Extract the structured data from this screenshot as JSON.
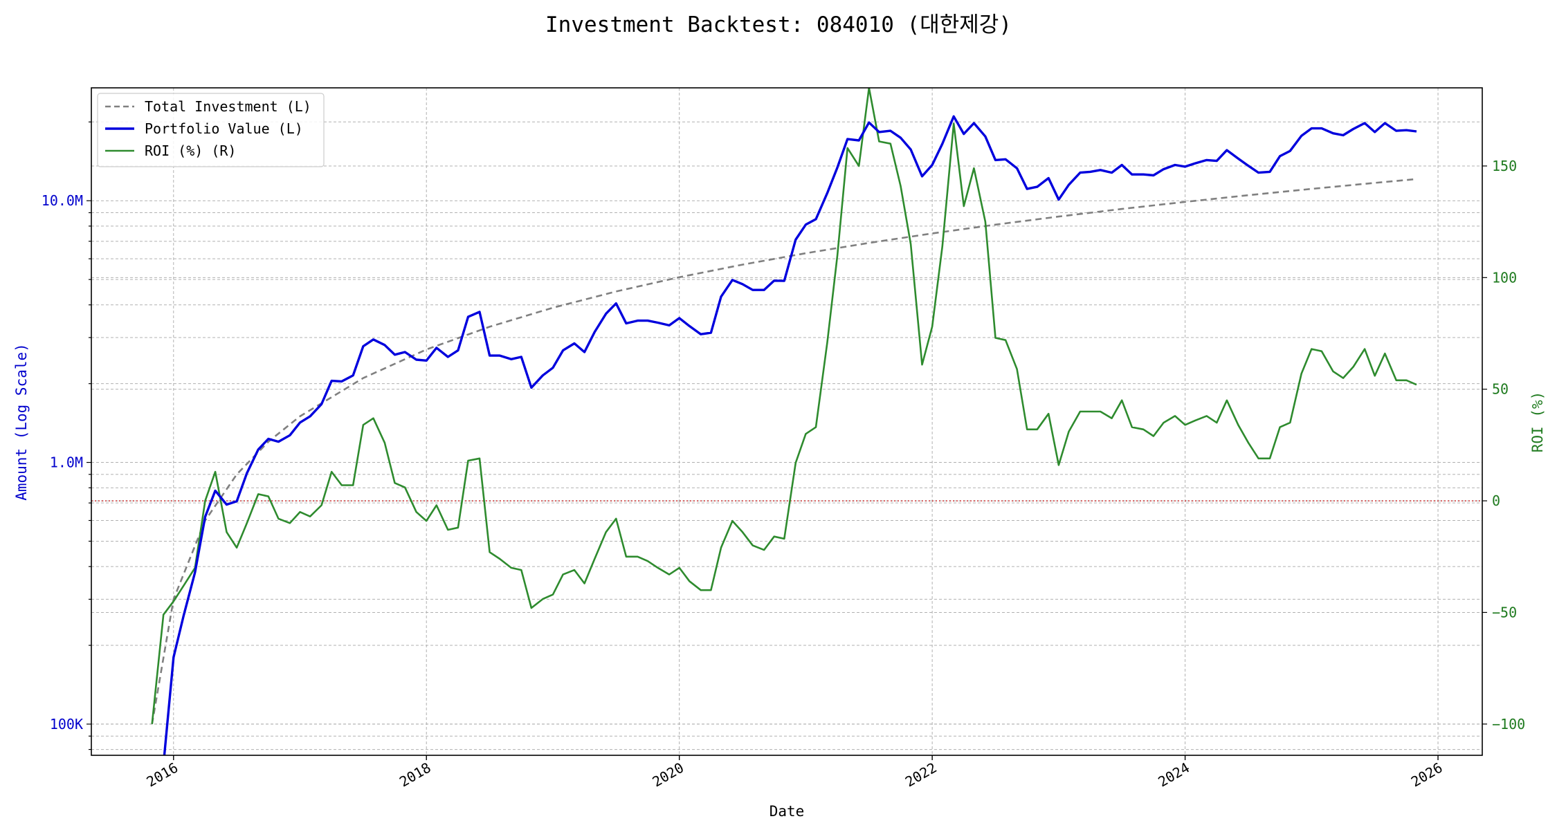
{
  "chart_data": {
    "type": "line",
    "title": "Investment Backtest: 084010 (대한제강)",
    "xlabel": "Date",
    "ylabel_left": "Amount (Log Scale)",
    "ylabel_right": "ROI (%)",
    "x_ticks": [
      2016,
      2018,
      2020,
      2022,
      2024,
      2026
    ],
    "x_tick_labels": [
      "2016",
      "2018",
      "2020",
      "2022",
      "2024",
      "2026"
    ],
    "xlim": [
      2015.35,
      2026.35
    ],
    "y_left_scale": "log",
    "y_left_lim": [
      76000,
      27000000
    ],
    "y_left_ticks": [
      100000,
      1000000,
      10000000
    ],
    "y_left_tick_labels": [
      "100K",
      "1.0M",
      "10.0M"
    ],
    "y_right_lim": [
      -114,
      185
    ],
    "y_right_ticks": [
      -100,
      -50,
      0,
      50,
      100,
      150
    ],
    "y_right_tick_labels": [
      "−100",
      "−50",
      "0",
      "50",
      "100",
      "150"
    ],
    "zero_reference_line_roi": 0,
    "grid": true,
    "legend_position": "top-left",
    "colors": {
      "total_investment": "#808080",
      "portfolio_value": "#0000dd",
      "roi": "#2e8b2e",
      "zero_line": "#cc3333",
      "left_axis": "#0000cc",
      "right_axis": "#1e7a1e"
    },
    "series": [
      {
        "name": "Total Investment (L)",
        "axis": "left",
        "style": "dashed",
        "x": [
          2015.83,
          2016.0,
          2016.25,
          2016.5,
          2016.75,
          2017.0,
          2017.5,
          2018.0,
          2018.5,
          2019.0,
          2019.5,
          2020.0,
          2020.5,
          2021.0,
          2021.5,
          2022.0,
          2022.5,
          2023.0,
          2023.5,
          2024.0,
          2024.5,
          2025.0,
          2025.5,
          2025.83
        ],
        "values": [
          100000,
          300000,
          600000,
          900000,
          1200000,
          1500000,
          2100000,
          2700000,
          3300000,
          3900000,
          4500000,
          5100000,
          5700000,
          6300000,
          6900000,
          7500000,
          8100000,
          8700000,
          9300000,
          9900000,
          10500000,
          11100000,
          11700000,
          12100000
        ]
      },
      {
        "name": "Portfolio Value (L)",
        "axis": "left",
        "style": "solid",
        "x": [
          2015.92,
          2016.0,
          2016.08,
          2016.17,
          2016.25,
          2016.33,
          2016.42,
          2016.5,
          2016.58,
          2016.67,
          2016.75,
          2016.83,
          2016.92,
          2017.0,
          2017.08,
          2017.17,
          2017.25,
          2017.33,
          2017.42,
          2017.5,
          2017.58,
          2017.67,
          2017.75,
          2017.83,
          2017.92,
          2018.0,
          2018.08,
          2018.17,
          2018.25,
          2018.33,
          2018.42,
          2018.5,
          2018.58,
          2018.67,
          2018.75,
          2018.83,
          2018.92,
          2019.0,
          2019.08,
          2019.17,
          2019.25,
          2019.33,
          2019.42,
          2019.5,
          2019.58,
          2019.67,
          2019.75,
          2019.83,
          2019.92,
          2020.0,
          2020.08,
          2020.17,
          2020.25,
          2020.33,
          2020.42,
          2020.5,
          2020.58,
          2020.67,
          2020.75,
          2020.83,
          2020.92,
          2021.0,
          2021.08,
          2021.17,
          2021.25,
          2021.33,
          2021.42,
          2021.5,
          2021.58,
          2021.67,
          2021.75,
          2021.83,
          2021.92,
          2022.0,
          2022.08,
          2022.17,
          2022.25,
          2022.33,
          2022.42,
          2022.5,
          2022.58,
          2022.67,
          2022.75,
          2022.83,
          2022.92,
          2023.0,
          2023.08,
          2023.17,
          2023.25,
          2023.33,
          2023.42,
          2023.5,
          2023.58,
          2023.67,
          2023.75,
          2023.83,
          2023.92,
          2024.0,
          2024.08,
          2024.17,
          2024.25,
          2024.33,
          2024.42,
          2024.5,
          2024.58,
          2024.67,
          2024.75,
          2024.83,
          2024.92,
          2025.0,
          2025.08,
          2025.17,
          2025.25,
          2025.33,
          2025.42,
          2025.5,
          2025.58,
          2025.67,
          2025.75,
          2025.83
        ],
        "values": [
          70000,
          180000,
          260000,
          380000,
          620000,
          780000,
          690000,
          710000,
          910000,
          1120000,
          1230000,
          1200000,
          1270000,
          1420000,
          1500000,
          1670000,
          2050000,
          2040000,
          2150000,
          2780000,
          2950000,
          2810000,
          2580000,
          2640000,
          2470000,
          2450000,
          2740000,
          2530000,
          2680000,
          3600000,
          3760000,
          2560000,
          2560000,
          2480000,
          2530000,
          1930000,
          2150000,
          2300000,
          2680000,
          2850000,
          2640000,
          3150000,
          3700000,
          4050000,
          3400000,
          3480000,
          3480000,
          3420000,
          3340000,
          3560000,
          3320000,
          3090000,
          3130000,
          4300000,
          4980000,
          4800000,
          4560000,
          4560000,
          4950000,
          4940000,
          7100000,
          8100000,
          8500000,
          10700000,
          13400000,
          17200000,
          17000000,
          19900000,
          18300000,
          18500000,
          17400000,
          15700000,
          12400000,
          13700000,
          16500000,
          21000000,
          18000000,
          19800000,
          17600000,
          14300000,
          14400000,
          13300000,
          11100000,
          11300000,
          12200000,
          10100000,
          11500000,
          12800000,
          12900000,
          13100000,
          12800000,
          13700000,
          12600000,
          12600000,
          12500000,
          13200000,
          13700000,
          13500000,
          13900000,
          14300000,
          14200000,
          15600000,
          14500000,
          13600000,
          12800000,
          12900000,
          14800000,
          15500000,
          17700000,
          18900000,
          18900000,
          18100000,
          17800000,
          18800000,
          19800000,
          18300000,
          19800000,
          18500000,
          18600000,
          18400000
        ]
      },
      {
        "name": "ROI (%) (R)",
        "axis": "right",
        "style": "solid",
        "x": [
          2015.83,
          2015.92,
          2016.0,
          2016.08,
          2016.17,
          2016.25,
          2016.33,
          2016.42,
          2016.5,
          2016.58,
          2016.67,
          2016.75,
          2016.83,
          2016.92,
          2017.0,
          2017.08,
          2017.17,
          2017.25,
          2017.33,
          2017.42,
          2017.5,
          2017.58,
          2017.67,
          2017.75,
          2017.83,
          2017.92,
          2018.0,
          2018.08,
          2018.17,
          2018.25,
          2018.33,
          2018.42,
          2018.5,
          2018.58,
          2018.67,
          2018.75,
          2018.83,
          2018.92,
          2019.0,
          2019.08,
          2019.17,
          2019.25,
          2019.33,
          2019.42,
          2019.5,
          2019.58,
          2019.67,
          2019.75,
          2019.83,
          2019.92,
          2020.0,
          2020.08,
          2020.17,
          2020.25,
          2020.33,
          2020.42,
          2020.5,
          2020.58,
          2020.67,
          2020.75,
          2020.83,
          2020.92,
          2021.0,
          2021.08,
          2021.17,
          2021.25,
          2021.33,
          2021.42,
          2021.5,
          2021.58,
          2021.67,
          2021.75,
          2021.83,
          2021.92,
          2022.0,
          2022.08,
          2022.17,
          2022.25,
          2022.33,
          2022.42,
          2022.5,
          2022.58,
          2022.67,
          2022.75,
          2022.83,
          2022.92,
          2023.0,
          2023.08,
          2023.17,
          2023.25,
          2023.33,
          2023.42,
          2023.5,
          2023.58,
          2023.67,
          2023.75,
          2023.83,
          2023.92,
          2024.0,
          2024.08,
          2024.17,
          2024.25,
          2024.33,
          2024.42,
          2024.5,
          2024.58,
          2024.67,
          2024.75,
          2024.83,
          2024.92,
          2025.0,
          2025.08,
          2025.17,
          2025.25,
          2025.33,
          2025.42,
          2025.5,
          2025.58,
          2025.67,
          2025.75,
          2025.83
        ],
        "values": [
          -100,
          -51,
          -45,
          -38,
          -30,
          0,
          13,
          -14,
          -21,
          -10,
          3,
          2,
          -8,
          -10,
          -5,
          -7,
          -2,
          13,
          7,
          7,
          34,
          37,
          26,
          8,
          6,
          -5,
          -9,
          -2,
          -13,
          -12,
          18,
          19,
          -23,
          -26,
          -30,
          -31,
          -48,
          -44,
          -42,
          -33,
          -31,
          -37,
          -26,
          -14,
          -8,
          -25,
          -25,
          -27,
          -30,
          -33,
          -30,
          -36,
          -40,
          -40,
          -21,
          -9,
          -14,
          -20,
          -22,
          -16,
          -17,
          17,
          30,
          33,
          71,
          110,
          158,
          150,
          185,
          161,
          160,
          141,
          115,
          61,
          78,
          114,
          169,
          132,
          149,
          125,
          73,
          72,
          59,
          32,
          32,
          39,
          16,
          31,
          40,
          40,
          40,
          37,
          45,
          33,
          32,
          29,
          35,
          38,
          34,
          36,
          38,
          35,
          45,
          34,
          26,
          19,
          19,
          33,
          35,
          57,
          68,
          67,
          58,
          55,
          60,
          68,
          56,
          66,
          54,
          54,
          52
        ]
      }
    ]
  }
}
